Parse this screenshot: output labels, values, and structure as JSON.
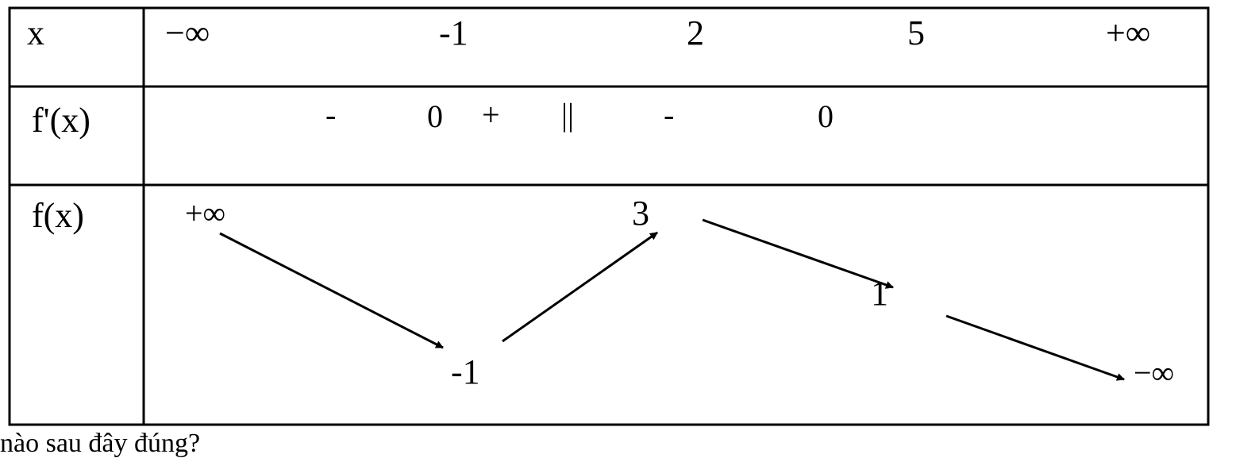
{
  "table": {
    "row_labels": {
      "x": "x",
      "derivative": "f'(x)",
      "function": "f(x)"
    },
    "x_values": [
      "−∞",
      "-1",
      "2",
      "5",
      "+∞"
    ],
    "derivative_signs": [
      "-",
      "0",
      "+",
      "||",
      "-",
      "0"
    ],
    "function_values": {
      "start": "+∞",
      "min": "-1",
      "max": "3",
      "mid": "1",
      "end": "−∞"
    }
  },
  "caption": "nào sau đây đúng?"
}
